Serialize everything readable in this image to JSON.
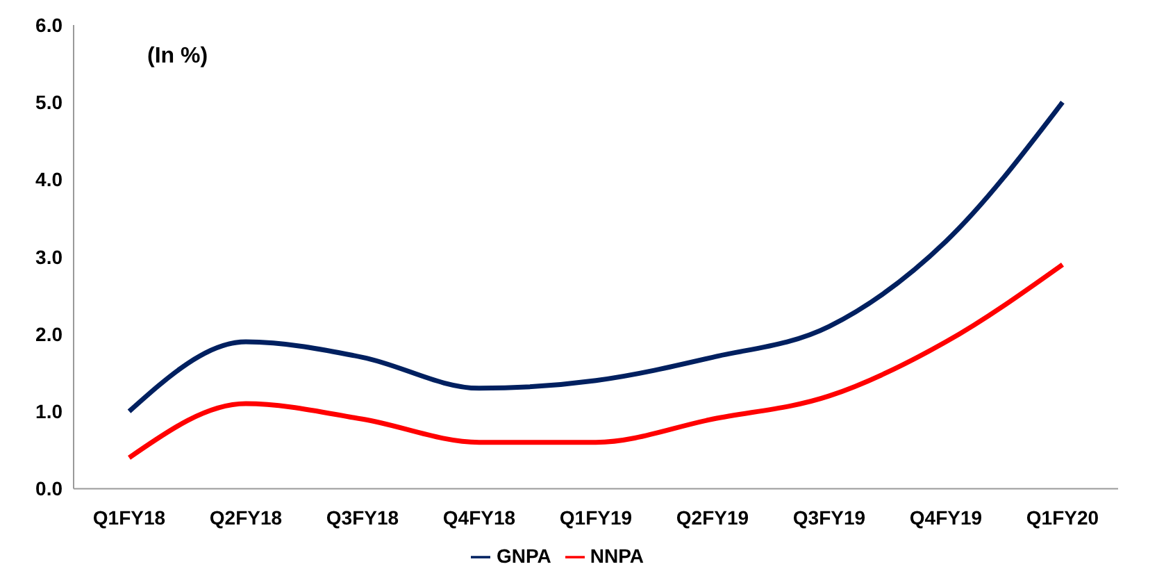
{
  "chart_data": {
    "type": "line",
    "categories": [
      "Q1FY18",
      "Q2FY18",
      "Q3FY18",
      "Q4FY18",
      "Q1FY19",
      "Q2FY19",
      "Q3FY19",
      "Q4FY19",
      "Q1FY20"
    ],
    "series": [
      {
        "name": "GNPA",
        "color": "#002060",
        "values": [
          1.0,
          1.9,
          1.7,
          1.3,
          1.4,
          1.7,
          2.1,
          3.2,
          5.0
        ]
      },
      {
        "name": "NNPA",
        "color": "#ff0000",
        "values": [
          0.4,
          1.1,
          0.9,
          0.6,
          0.6,
          0.9,
          1.2,
          1.9,
          2.9
        ]
      }
    ],
    "ylim": [
      0,
      6
    ],
    "yticks": [
      {
        "value": 0,
        "label": "0.0"
      },
      {
        "value": 1,
        "label": "1.0"
      },
      {
        "value": 2,
        "label": "2.0"
      },
      {
        "value": 3,
        "label": "3.0"
      },
      {
        "value": 4,
        "label": "4.0"
      },
      {
        "value": 5,
        "label": "5.0"
      },
      {
        "value": 6,
        "label": "6.0"
      }
    ],
    "annotations": [
      "(In %)"
    ],
    "legend": "bottom",
    "grid": false,
    "marker": "none",
    "line_style": "solid"
  }
}
